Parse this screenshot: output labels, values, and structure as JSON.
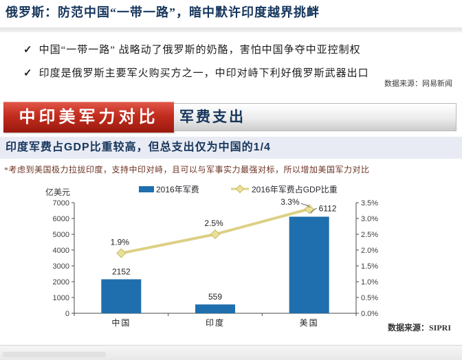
{
  "page": {
    "header": {
      "title": "俄罗斯：防范中国“一带一路”，暗中默许印度越界挑衅",
      "check_glyph": "✓",
      "bullets": [
        {
          "text": "中国“一带一路” 战略动了俄罗斯的奶酪，害怕中国争夺中亚控制权"
        },
        {
          "text": "印度是俄罗斯主要军火购买方之一，中印对峙下利好俄罗斯武器出口"
        }
      ],
      "source": "数据来源：网易新闻"
    },
    "banner": {
      "main": "中印美军力对比",
      "sub": "军费支出",
      "red_color": "#b02418",
      "navy_color": "#16365c"
    },
    "subtitle": "印度军费占GDP比重较高，但总支出仅为中国的1/4",
    "note": "*考虑到美国极力拉拢印度，支持中印对峙，且可以与军事实力最强对标，所以增加美国军力对比",
    "chart_source": "数据来源：SIPRI"
  },
  "chart_data": {
    "type": "bar",
    "title": "",
    "categories": [
      "中国",
      "印度",
      "美国"
    ],
    "series": [
      {
        "name": "2016年军费",
        "type": "bar",
        "axis": "left",
        "values": [
          2152,
          559,
          6112
        ],
        "value_labels": [
          "2152",
          "559",
          "6112"
        ],
        "color": "#1f6fae"
      },
      {
        "name": "2016年军费占GDP比重",
        "type": "line",
        "axis": "right",
        "values": [
          1.9,
          2.5,
          3.3
        ],
        "value_labels": [
          "1.9%",
          "2.5%",
          "3.3%"
        ],
        "color": "#ddd084",
        "marker_fill": "#e9e09a",
        "marker_stroke": "#c9ba5e"
      }
    ],
    "left_axis": {
      "label": "亿美元",
      "min": 0,
      "max": 7000,
      "tick_labels": [
        "0",
        "1000",
        "2000",
        "3000",
        "4000",
        "5000",
        "6000",
        "7000"
      ]
    },
    "right_axis": {
      "min": 0,
      "max": 3.5,
      "tick_labels": [
        "0.0%",
        "0.5%",
        "1.0%",
        "1.5%",
        "2.0%",
        "2.5%",
        "3.0%",
        "3.5%"
      ]
    },
    "legend_position": "top",
    "grid": false
  }
}
